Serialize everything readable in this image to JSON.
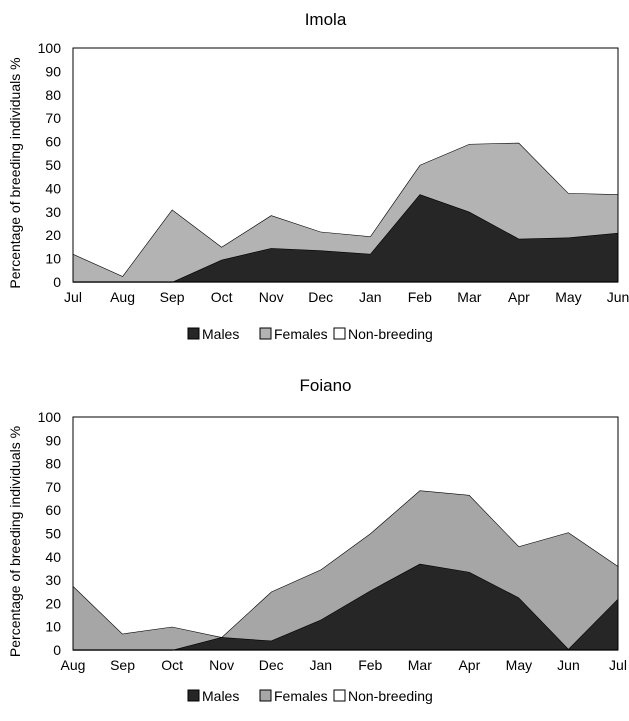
{
  "chart_data": [
    {
      "type": "area",
      "title": "Imola",
      "ylabel": "Percentage of breeding individuals %",
      "xlabel": "",
      "ylim": [
        0,
        100
      ],
      "yticks": [
        "0",
        "10",
        "20",
        "30",
        "40",
        "50",
        "60",
        "70",
        "80",
        "90",
        "100"
      ],
      "categories": [
        "Jul",
        "Aug",
        "Sep",
        "Oct",
        "Nov",
        "Dec",
        "Jan",
        "Feb",
        "Mar",
        "Apr",
        "May",
        "Jun"
      ],
      "stacked": true,
      "grid": true,
      "legend_position": "bottom",
      "series": [
        {
          "name": "Males",
          "color": "#262626",
          "values": [
            0,
            0,
            0,
            9.5,
            14.5,
            13.5,
            12,
            37.5,
            30,
            18.5,
            19,
            21
          ]
        },
        {
          "name": "Females",
          "color": "#b3b3b3",
          "values": [
            12,
            2.5,
            31,
            5.5,
            14,
            8,
            7.5,
            12.5,
            29,
            41,
            19,
            16.5
          ]
        },
        {
          "name": "Non-breeding",
          "color": "#ffffff",
          "values": [
            88,
            97.5,
            69,
            85,
            71.5,
            78.5,
            80.5,
            50,
            41,
            40.5,
            62,
            62.5
          ]
        }
      ]
    },
    {
      "type": "area",
      "title": "Foiano",
      "ylabel": "Percentage of breeding individuals %",
      "xlabel": "",
      "ylim": [
        0,
        100
      ],
      "yticks": [
        "0",
        "10",
        "20",
        "30",
        "40",
        "50",
        "60",
        "70",
        "80",
        "90",
        "100"
      ],
      "categories": [
        "Aug",
        "Sep",
        "Oct",
        "Nov",
        "Dec",
        "Jan",
        "Feb",
        "Mar",
        "Apr",
        "May",
        "Jun",
        "Jul"
      ],
      "stacked": true,
      "grid": true,
      "legend_position": "bottom",
      "series": [
        {
          "name": "Males",
          "color": "#262626",
          "values": [
            0,
            0,
            0,
            5.5,
            4,
            13,
            25.5,
            37,
            33.5,
            22.5,
            0.5,
            22
          ]
        },
        {
          "name": "Females",
          "color": "#a6a6a6",
          "values": [
            27.5,
            7,
            10,
            0,
            21,
            21.5,
            24.5,
            31.5,
            33,
            22,
            50,
            14
          ]
        },
        {
          "name": "Non-breeding",
          "color": "#ffffff",
          "values": [
            72.5,
            93,
            90,
            94.5,
            75,
            65.5,
            50,
            31.5,
            33.5,
            55.5,
            49.5,
            64
          ]
        }
      ]
    }
  ]
}
